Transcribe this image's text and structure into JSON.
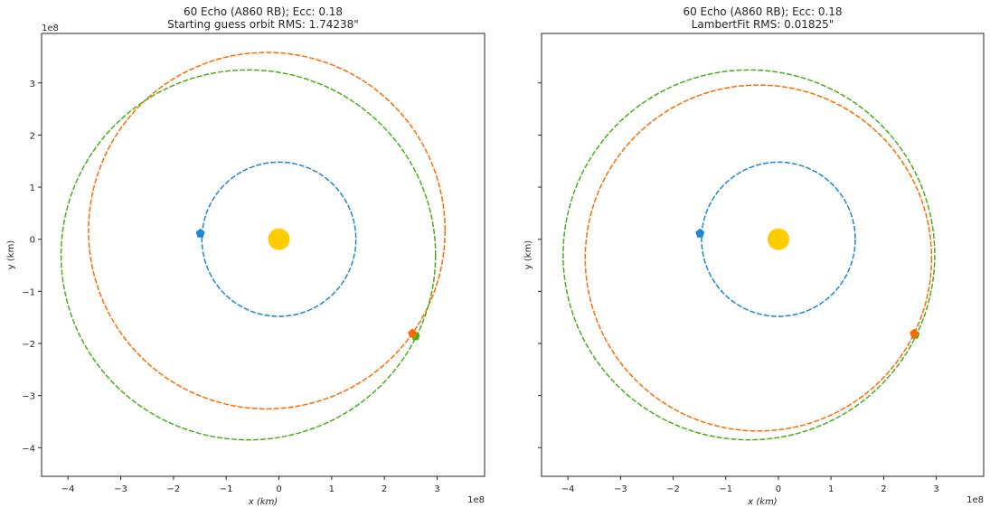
{
  "chart_data": [
    {
      "type": "scatter",
      "title_line1": "60 Echo (A860 RB); Ecc: 0.18",
      "title_line2": "Starting guess orbit RMS: 1.74238\"",
      "xlabel": "x (km)",
      "ylabel": "y (km)",
      "x_offset_label": "1e8",
      "y_offset_label": "1e8",
      "xlim": [
        -4.5,
        3.9
      ],
      "ylim": [
        -4.55,
        3.95
      ],
      "xticks": [
        "−4",
        "−3",
        "−2",
        "−1",
        "0",
        "1",
        "2",
        "3"
      ],
      "xtick_values": [
        -4,
        -3,
        -2,
        -1,
        0,
        1,
        2,
        3
      ],
      "yticks": [
        "−4",
        "−3",
        "−2",
        "−1",
        "0",
        "1",
        "2",
        "3"
      ],
      "ytick_values": [
        -4,
        -3,
        -2,
        -1,
        0,
        1,
        2,
        3
      ],
      "show_yticklabels": true,
      "orbits": [
        {
          "name": "earth-orbit",
          "color": "#1f86d6",
          "cx": 0,
          "cy": 0,
          "rx": 1.46,
          "ry": 1.48
        },
        {
          "name": "fitted-orbit",
          "color": "#ff6a00",
          "cx": -0.23,
          "cy": 0.165,
          "rx": 3.38,
          "ry": 3.42
        },
        {
          "name": "true-orbit",
          "color": "#4aad1c",
          "cx": -0.58,
          "cy": -0.3,
          "rx": 3.55,
          "ry": 3.55
        }
      ],
      "markers": [
        {
          "name": "earth-marker",
          "color": "#1f86d6",
          "x": -1.49,
          "y": 0.12
        },
        {
          "name": "true-position-marker",
          "color": "#4aad1c",
          "x": 2.59,
          "y": -1.85
        },
        {
          "name": "fitted-position-marker",
          "color": "#ff6a00",
          "x": 2.53,
          "y": -1.8
        }
      ],
      "sun": {
        "color": "#ffcc00",
        "x": 0,
        "y": 0
      }
    },
    {
      "type": "scatter",
      "title_line1": "60 Echo (A860 RB); Ecc: 0.18",
      "title_line2": "LambertFit RMS: 0.01825\"",
      "xlabel": "x (km)",
      "ylabel": "y (km)",
      "x_offset_label": "1e8",
      "y_offset_label": "",
      "xlim": [
        -4.5,
        3.9
      ],
      "ylim": [
        -4.55,
        3.95
      ],
      "xticks": [
        "−4",
        "−3",
        "−2",
        "−1",
        "0",
        "1",
        "2",
        "3"
      ],
      "xtick_values": [
        -4,
        -3,
        -2,
        -1,
        0,
        1,
        2,
        3
      ],
      "yticks": [
        "",
        "",
        "",
        "",
        "",
        "",
        "",
        ""
      ],
      "ytick_values": [
        -4,
        -3,
        -2,
        -1,
        0,
        1,
        2,
        3
      ],
      "show_yticklabels": false,
      "orbits": [
        {
          "name": "earth-orbit",
          "color": "#1f86d6",
          "cx": 0,
          "cy": 0,
          "rx": 1.46,
          "ry": 1.48
        },
        {
          "name": "fitted-orbit",
          "color": "#ff6a00",
          "cx": -0.38,
          "cy": -0.36,
          "rx": 3.29,
          "ry": 3.32
        },
        {
          "name": "true-orbit",
          "color": "#4aad1c",
          "cx": -0.56,
          "cy": -0.3,
          "rx": 3.53,
          "ry": 3.55
        }
      ],
      "markers": [
        {
          "name": "earth-marker",
          "color": "#1f86d6",
          "x": -1.49,
          "y": 0.12
        },
        {
          "name": "true-position-marker",
          "color": "#4aad1c",
          "x": 2.6,
          "y": -1.82
        },
        {
          "name": "fitted-position-marker",
          "color": "#ff6a00",
          "x": 2.58,
          "y": -1.8
        }
      ],
      "sun": {
        "color": "#ffcc00",
        "x": 0,
        "y": 0
      }
    }
  ]
}
